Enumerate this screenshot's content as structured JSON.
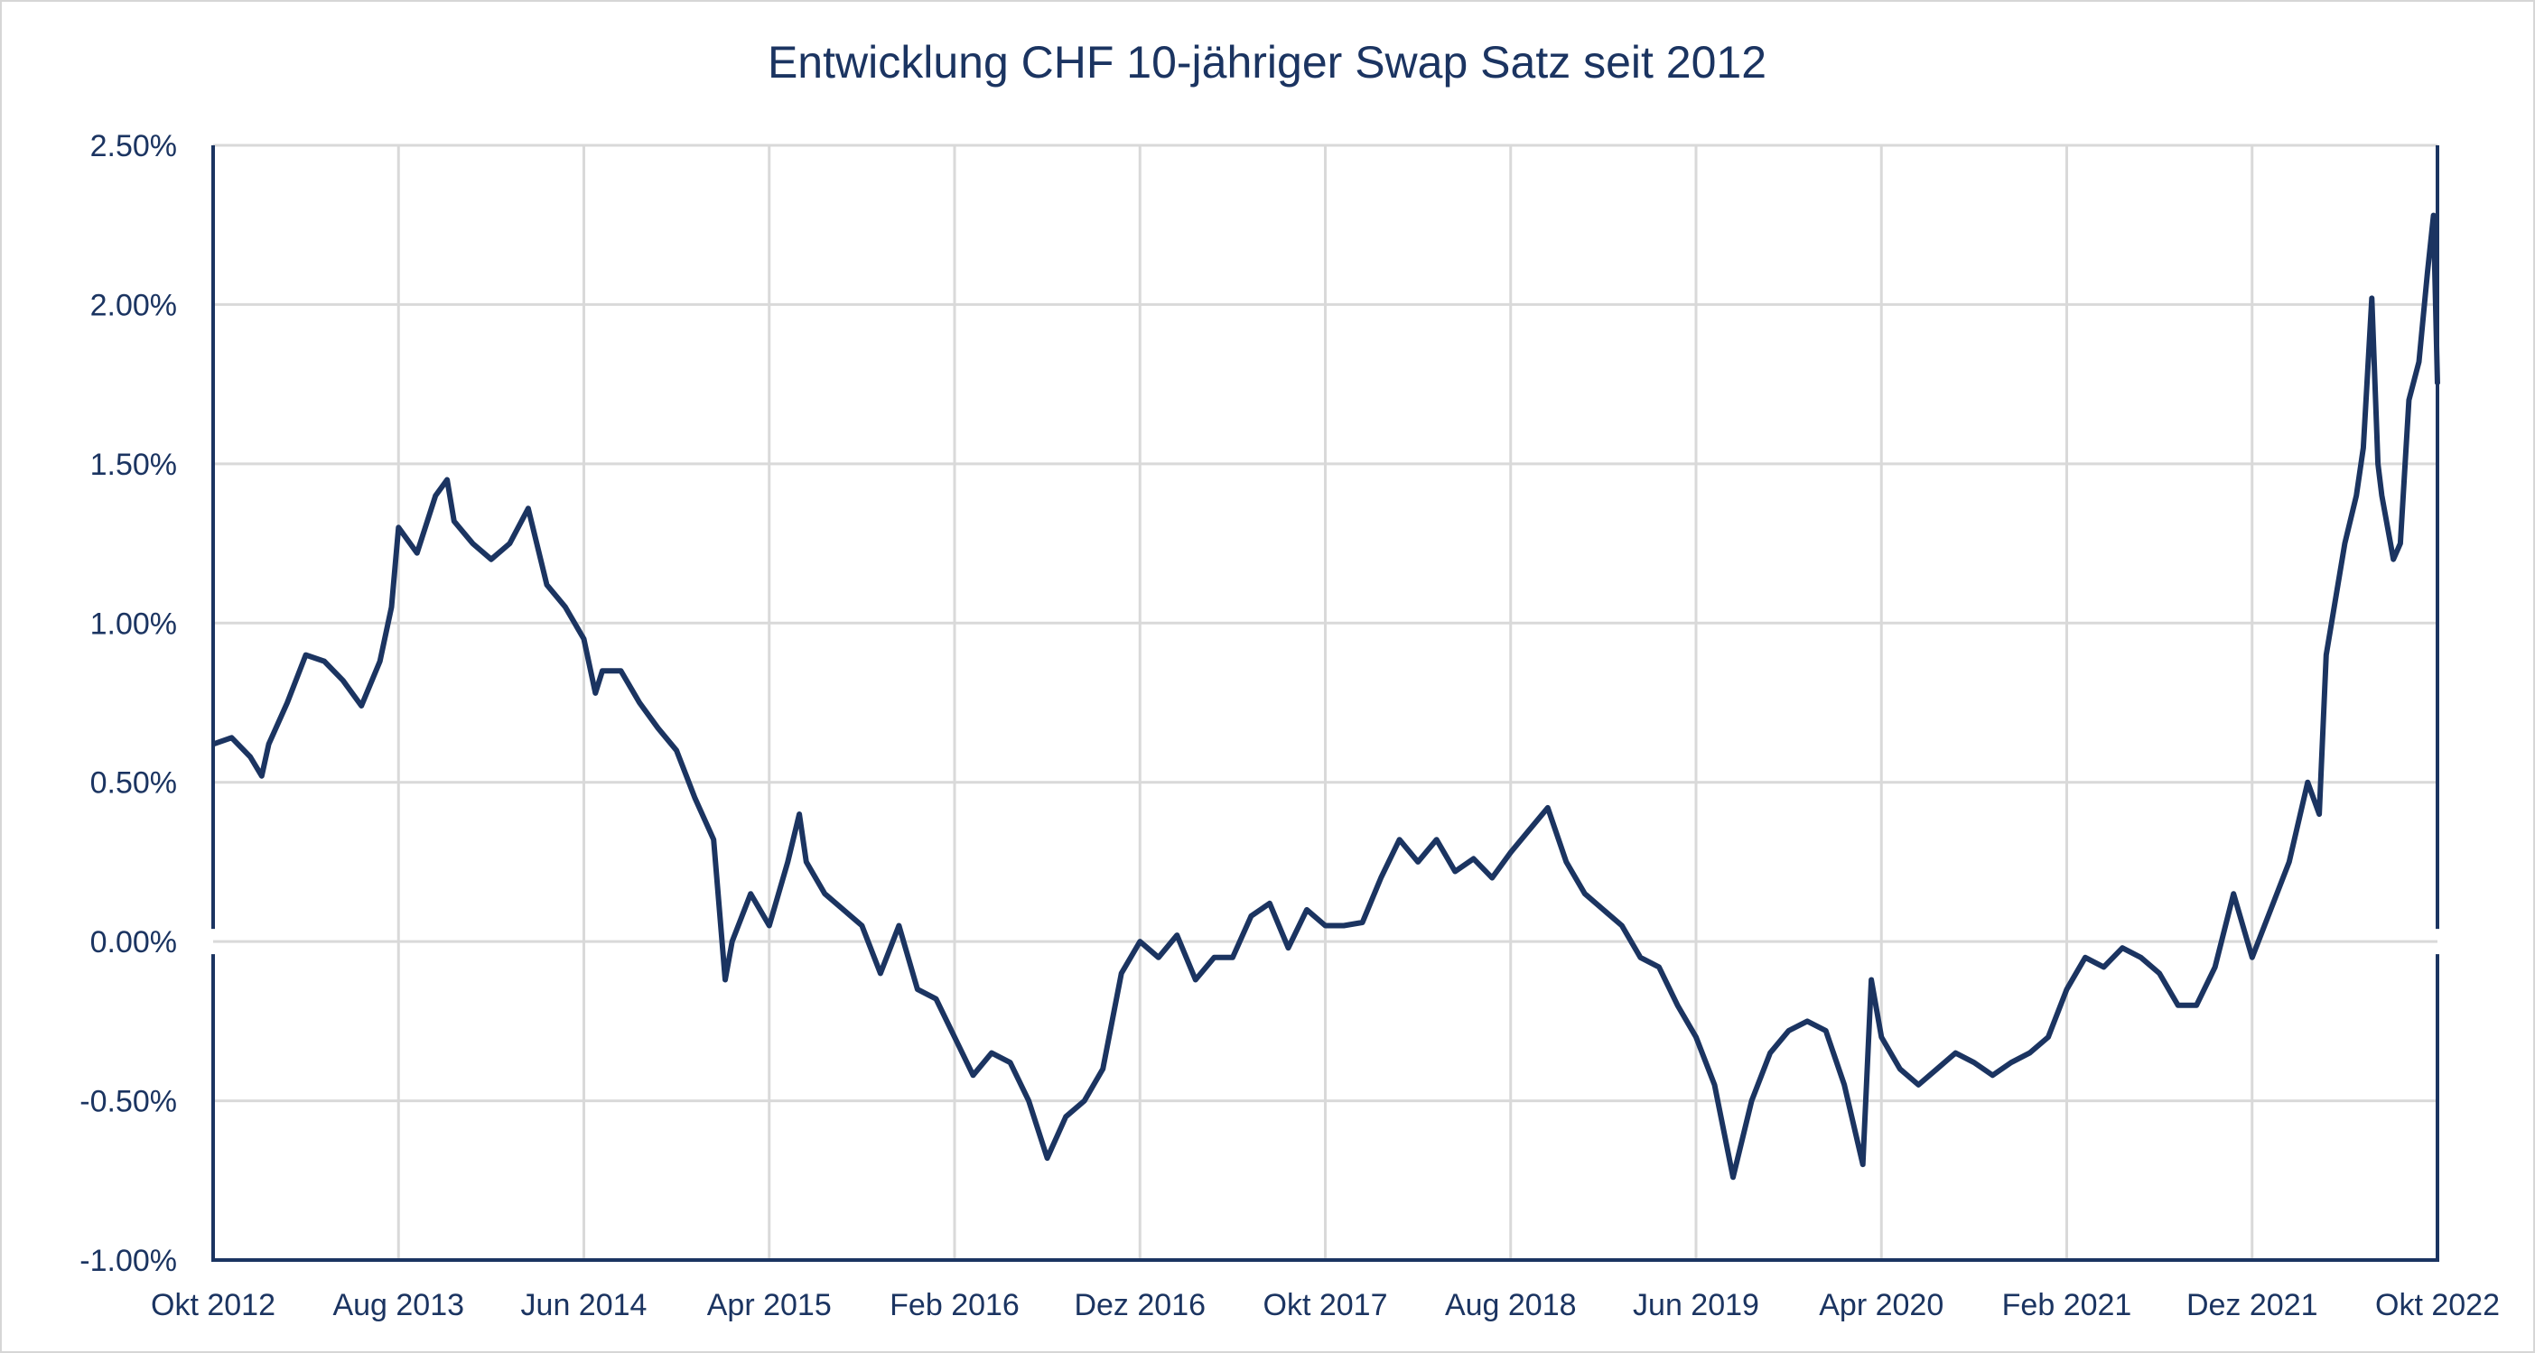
{
  "chart_data": {
    "type": "line",
    "title": "Entwicklung CHF 10-jähriger Swap Satz seit 2012",
    "xlabel": "",
    "ylabel": "",
    "xlim": [
      "2012-10-01",
      "2022-10-01"
    ],
    "ylim": [
      -1.0,
      2.5
    ],
    "yticks": [
      -1.0,
      -0.5,
      0.0,
      0.5,
      1.0,
      1.5,
      2.0,
      2.5
    ],
    "ytick_labels": [
      "-1.00%",
      "-0.50%",
      "0.00%",
      "0.50%",
      "1.00%",
      "1.50%",
      "2.00%",
      "2.50%"
    ],
    "xticks": [
      "2012-10-01",
      "2013-08-01",
      "2014-06-01",
      "2015-04-01",
      "2016-02-01",
      "2016-12-01",
      "2017-10-01",
      "2018-08-01",
      "2019-06-01",
      "2020-04-01",
      "2021-02-01",
      "2021-12-01",
      "2022-10-01"
    ],
    "xtick_labels": [
      "Okt 2012",
      "Aug 2013",
      "Jun 2014",
      "Apr 2015",
      "Feb 2016",
      "Dez 2016",
      "Okt 2017",
      "Aug 2018",
      "Jun 2019",
      "Apr 2020",
      "Feb 2021",
      "Dez 2021",
      "Okt 2022"
    ],
    "grid": true,
    "legend": "none",
    "colors": {
      "line": "#1b3461",
      "grid": "#d9d9d9",
      "axis": "#1b3461",
      "text": "#1b3461"
    },
    "series": [
      {
        "points": [
          [
            "2012-10-01",
            0.62
          ],
          [
            "2012-11-01",
            0.64
          ],
          [
            "2012-12-01",
            0.58
          ],
          [
            "2012-12-20",
            0.52
          ],
          [
            "2013-01-01",
            0.62
          ],
          [
            "2013-02-01",
            0.75
          ],
          [
            "2013-03-01",
            0.9
          ],
          [
            "2013-04-01",
            0.88
          ],
          [
            "2013-05-01",
            0.82
          ],
          [
            "2013-06-01",
            0.74
          ],
          [
            "2013-07-01",
            0.88
          ],
          [
            "2013-07-20",
            1.05
          ],
          [
            "2013-08-01",
            1.3
          ],
          [
            "2013-09-01",
            1.22
          ],
          [
            "2013-10-01",
            1.4
          ],
          [
            "2013-10-20",
            1.45
          ],
          [
            "2013-11-01",
            1.32
          ],
          [
            "2013-12-01",
            1.25
          ],
          [
            "2014-01-01",
            1.2
          ],
          [
            "2014-02-01",
            1.25
          ],
          [
            "2014-03-01",
            1.36
          ],
          [
            "2014-04-01",
            1.12
          ],
          [
            "2014-05-01",
            1.05
          ],
          [
            "2014-06-01",
            0.95
          ],
          [
            "2014-06-20",
            0.78
          ],
          [
            "2014-07-01",
            0.85
          ],
          [
            "2014-08-01",
            0.85
          ],
          [
            "2014-09-01",
            0.75
          ],
          [
            "2014-10-01",
            0.67
          ],
          [
            "2014-11-01",
            0.6
          ],
          [
            "2014-12-01",
            0.45
          ],
          [
            "2015-01-01",
            0.32
          ],
          [
            "2015-01-20",
            -0.12
          ],
          [
            "2015-02-01",
            0.0
          ],
          [
            "2015-03-01",
            0.15
          ],
          [
            "2015-04-01",
            0.05
          ],
          [
            "2015-05-01",
            0.25
          ],
          [
            "2015-05-20",
            0.4
          ],
          [
            "2015-06-01",
            0.25
          ],
          [
            "2015-07-01",
            0.15
          ],
          [
            "2015-08-01",
            0.1
          ],
          [
            "2015-09-01",
            0.05
          ],
          [
            "2015-10-01",
            -0.1
          ],
          [
            "2015-11-01",
            0.05
          ],
          [
            "2015-12-01",
            -0.15
          ],
          [
            "2016-01-01",
            -0.18
          ],
          [
            "2016-02-01",
            -0.3
          ],
          [
            "2016-03-01",
            -0.42
          ],
          [
            "2016-04-01",
            -0.35
          ],
          [
            "2016-05-01",
            -0.38
          ],
          [
            "2016-06-01",
            -0.5
          ],
          [
            "2016-07-01",
            -0.68
          ],
          [
            "2016-08-01",
            -0.55
          ],
          [
            "2016-09-01",
            -0.5
          ],
          [
            "2016-10-01",
            -0.4
          ],
          [
            "2016-11-01",
            -0.1
          ],
          [
            "2016-12-01",
            0.0
          ],
          [
            "2017-01-01",
            -0.05
          ],
          [
            "2017-02-01",
            0.02
          ],
          [
            "2017-03-01",
            -0.12
          ],
          [
            "2017-04-01",
            -0.05
          ],
          [
            "2017-05-01",
            -0.05
          ],
          [
            "2017-06-01",
            0.08
          ],
          [
            "2017-07-01",
            0.12
          ],
          [
            "2017-08-01",
            -0.02
          ],
          [
            "2017-09-01",
            0.1
          ],
          [
            "2017-10-01",
            0.05
          ],
          [
            "2017-11-01",
            0.05
          ],
          [
            "2017-12-01",
            0.06
          ],
          [
            "2018-01-01",
            0.2
          ],
          [
            "2018-02-01",
            0.32
          ],
          [
            "2018-03-01",
            0.25
          ],
          [
            "2018-04-01",
            0.32
          ],
          [
            "2018-05-01",
            0.22
          ],
          [
            "2018-06-01",
            0.26
          ],
          [
            "2018-07-01",
            0.2
          ],
          [
            "2018-08-01",
            0.28
          ],
          [
            "2018-09-01",
            0.35
          ],
          [
            "2018-10-01",
            0.42
          ],
          [
            "2018-11-01",
            0.25
          ],
          [
            "2018-12-01",
            0.15
          ],
          [
            "2019-01-01",
            0.1
          ],
          [
            "2019-02-01",
            0.05
          ],
          [
            "2019-03-01",
            -0.05
          ],
          [
            "2019-04-01",
            -0.08
          ],
          [
            "2019-05-01",
            -0.2
          ],
          [
            "2019-06-01",
            -0.3
          ],
          [
            "2019-07-01",
            -0.45
          ],
          [
            "2019-08-01",
            -0.74
          ],
          [
            "2019-09-01",
            -0.5
          ],
          [
            "2019-10-01",
            -0.35
          ],
          [
            "2019-11-01",
            -0.28
          ],
          [
            "2019-12-01",
            -0.25
          ],
          [
            "2020-01-01",
            -0.28
          ],
          [
            "2020-02-01",
            -0.45
          ],
          [
            "2020-03-01",
            -0.7
          ],
          [
            "2020-03-15",
            -0.12
          ],
          [
            "2020-04-01",
            -0.3
          ],
          [
            "2020-05-01",
            -0.4
          ],
          [
            "2020-06-01",
            -0.45
          ],
          [
            "2020-07-01",
            -0.4
          ],
          [
            "2020-08-01",
            -0.35
          ],
          [
            "2020-09-01",
            -0.38
          ],
          [
            "2020-10-01",
            -0.42
          ],
          [
            "2020-11-01",
            -0.38
          ],
          [
            "2020-12-01",
            -0.35
          ],
          [
            "2021-01-01",
            -0.3
          ],
          [
            "2021-02-01",
            -0.15
          ],
          [
            "2021-03-01",
            -0.05
          ],
          [
            "2021-04-01",
            -0.08
          ],
          [
            "2021-05-01",
            -0.02
          ],
          [
            "2021-06-01",
            -0.05
          ],
          [
            "2021-07-01",
            -0.1
          ],
          [
            "2021-08-01",
            -0.2
          ],
          [
            "2021-09-01",
            -0.2
          ],
          [
            "2021-10-01",
            -0.08
          ],
          [
            "2021-11-01",
            0.15
          ],
          [
            "2021-12-01",
            -0.05
          ],
          [
            "2022-01-01",
            0.1
          ],
          [
            "2022-02-01",
            0.25
          ],
          [
            "2022-03-01",
            0.5
          ],
          [
            "2022-03-20",
            0.4
          ],
          [
            "2022-04-01",
            0.9
          ],
          [
            "2022-05-01",
            1.25
          ],
          [
            "2022-05-20",
            1.4
          ],
          [
            "2022-06-01",
            1.55
          ],
          [
            "2022-06-15",
            2.02
          ],
          [
            "2022-06-25",
            1.5
          ],
          [
            "2022-07-01",
            1.4
          ],
          [
            "2022-07-20",
            1.2
          ],
          [
            "2022-08-01",
            1.25
          ],
          [
            "2022-08-15",
            1.7
          ],
          [
            "2022-09-01",
            1.82
          ],
          [
            "2022-09-15",
            2.1
          ],
          [
            "2022-09-25",
            2.28
          ],
          [
            "2022-10-01",
            1.75
          ]
        ]
      }
    ]
  }
}
